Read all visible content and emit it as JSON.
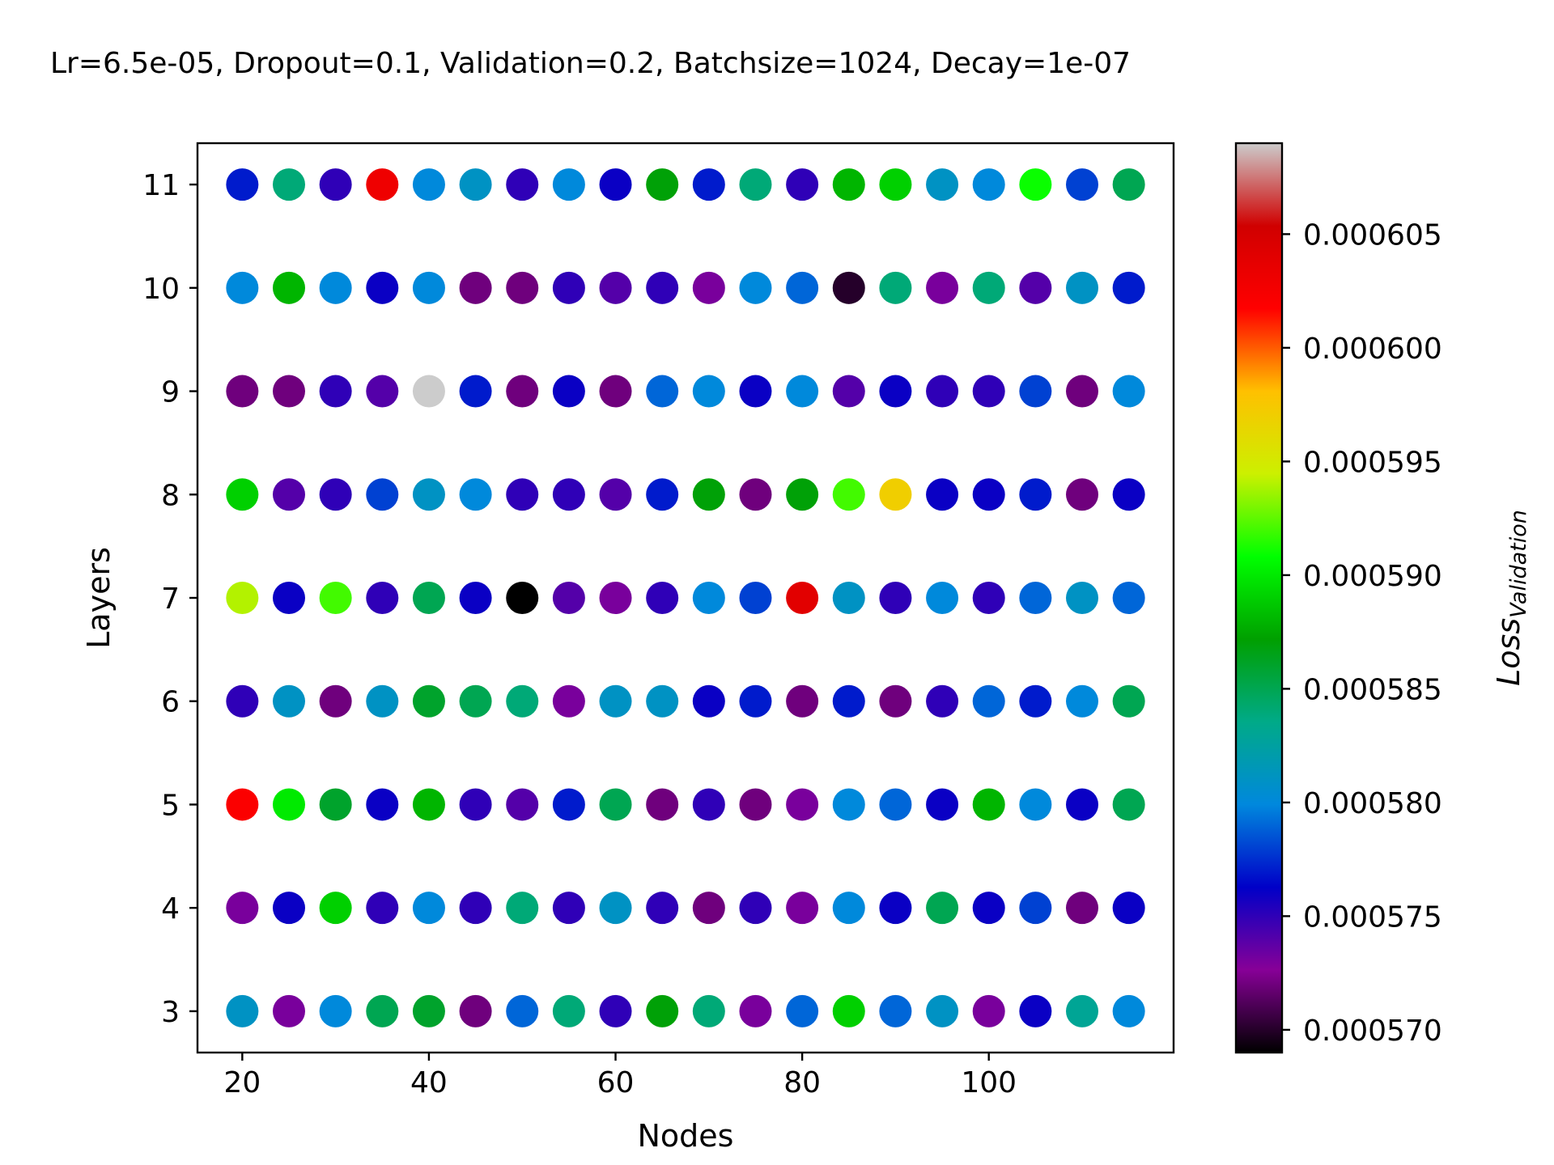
{
  "chart_data": {
    "type": "scatter",
    "title": "Lr=6.5e-05, Dropout=0.1, Validation=0.2, Batchsize=1024, Decay=1e-07",
    "xlabel": "Nodes",
    "ylabel": "Layers",
    "xlim": [
      15.2,
      119.8
    ],
    "ylim": [
      2.6,
      11.4
    ],
    "xticks": [
      20,
      40,
      60,
      80,
      100
    ],
    "yticks": [
      3,
      4,
      5,
      6,
      7,
      8,
      9,
      10,
      11
    ],
    "x": [
      20,
      25,
      30,
      35,
      40,
      45,
      50,
      55,
      60,
      65,
      70,
      75,
      80,
      85,
      90,
      95,
      100,
      105,
      110,
      115
    ],
    "layers": [
      11,
      10,
      9,
      8,
      7,
      6,
      5,
      4,
      3
    ],
    "loss": [
      [
        0.000577,
        0.000584,
        0.000575,
        0.000603,
        0.00058,
        0.000581,
        0.000575,
        0.00058,
        0.000576,
        0.000587,
        0.000577,
        0.000584,
        0.000575,
        0.000588,
        0.000589,
        0.000581,
        0.00058,
        0.000591,
        0.000578,
        0.000585
      ],
      [
        0.00058,
        0.000588,
        0.00058,
        0.000576,
        0.00058,
        0.000572,
        0.000572,
        0.000575,
        0.000574,
        0.000575,
        0.000573,
        0.00058,
        0.000579,
        0.00057,
        0.000584,
        0.000573,
        0.000584,
        0.000574,
        0.000581,
        0.000577
      ],
      [
        0.000572,
        0.000572,
        0.000575,
        0.000574,
        0.000609,
        0.000577,
        0.000572,
        0.000576,
        0.000572,
        0.000579,
        0.00058,
        0.000576,
        0.00058,
        0.000574,
        0.000576,
        0.000575,
        0.000575,
        0.000578,
        0.000572,
        0.00058
      ],
      [
        0.000589,
        0.000574,
        0.000575,
        0.000578,
        0.000581,
        0.00058,
        0.000575,
        0.000575,
        0.000574,
        0.000577,
        0.000587,
        0.000572,
        0.000587,
        0.000592,
        0.000597,
        0.000576,
        0.000576,
        0.000577,
        0.000572,
        0.000576
      ],
      [
        0.000594,
        0.000576,
        0.000592,
        0.000575,
        0.000585,
        0.000576,
        0.000569,
        0.000574,
        0.000573,
        0.000575,
        0.00058,
        0.000578,
        0.000604,
        0.000581,
        0.000575,
        0.00058,
        0.000575,
        0.000579,
        0.000581,
        0.000579
      ],
      [
        0.000575,
        0.000581,
        0.000572,
        0.000581,
        0.000586,
        0.000585,
        0.000584,
        0.000573,
        0.000581,
        0.000581,
        0.000576,
        0.000577,
        0.000572,
        0.000577,
        0.000572,
        0.000575,
        0.000579,
        0.000577,
        0.00058,
        0.000585
      ],
      [
        0.000602,
        0.00059,
        0.000586,
        0.000576,
        0.000588,
        0.000575,
        0.000574,
        0.000577,
        0.000585,
        0.000572,
        0.000575,
        0.000572,
        0.000573,
        0.00058,
        0.000579,
        0.000576,
        0.000588,
        0.00058,
        0.000576,
        0.000585
      ],
      [
        0.000573,
        0.000576,
        0.000589,
        0.000575,
        0.00058,
        0.000575,
        0.000584,
        0.000575,
        0.000581,
        0.000575,
        0.000572,
        0.000575,
        0.000573,
        0.00058,
        0.000576,
        0.000585,
        0.000576,
        0.000578,
        0.000572,
        0.000576
      ],
      [
        0.000581,
        0.000573,
        0.00058,
        0.000585,
        0.000586,
        0.000572,
        0.000579,
        0.000584,
        0.000575,
        0.000587,
        0.000584,
        0.000573,
        0.000579,
        0.000589,
        0.000579,
        0.000581,
        0.000573,
        0.000576,
        0.000583,
        0.00058
      ]
    ],
    "colorbar": {
      "label": "Loss",
      "label_subscript": "Validation",
      "range": [
        0.000569,
        0.000609
      ],
      "ticks": [
        0.00057,
        0.000575,
        0.00058,
        0.000585,
        0.00059,
        0.000595,
        0.0006,
        0.000605
      ],
      "tick_labels": [
        "0.000570",
        "0.000575",
        "0.000580",
        "0.000585",
        "0.000590",
        "0.000595",
        "0.000600",
        "0.000605"
      ],
      "colormap": "nipy_spectral",
      "stops": [
        "#000000",
        "#870097",
        "#0000c8",
        "#0088dd",
        "#00aa88",
        "#00a000",
        "#00ff00",
        "#ccf000",
        "#ffc000",
        "#ff0000",
        "#d00000",
        "#cccccc"
      ]
    },
    "grid": false,
    "legend": "none"
  }
}
